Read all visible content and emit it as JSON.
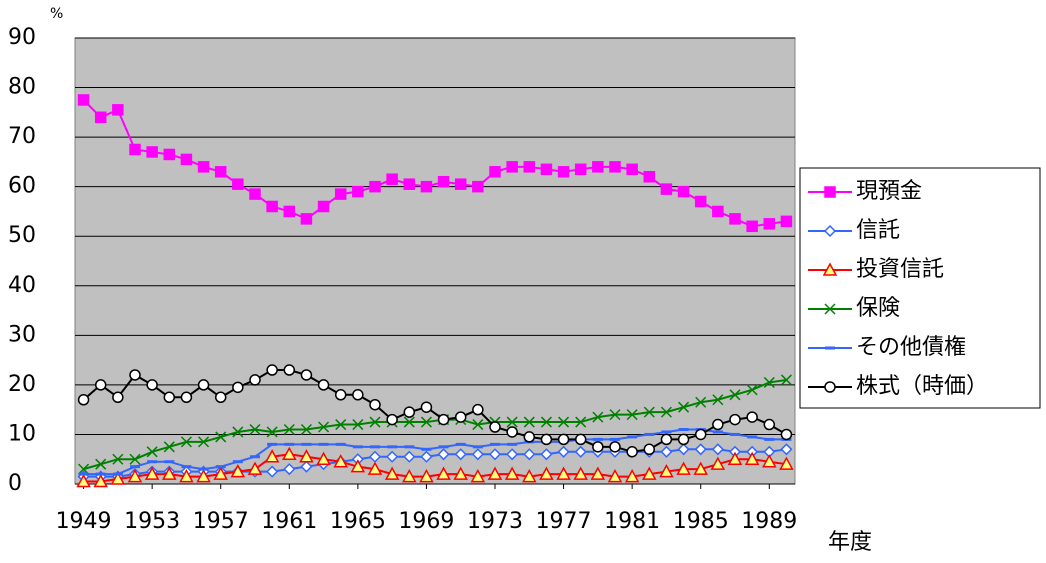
{
  "chart_data": {
    "type": "line",
    "y_unit": "%",
    "x_label": "年度",
    "x": [
      1949,
      1950,
      1951,
      1952,
      1953,
      1954,
      1955,
      1956,
      1957,
      1958,
      1959,
      1960,
      1961,
      1962,
      1963,
      1964,
      1965,
      1966,
      1967,
      1968,
      1969,
      1970,
      1971,
      1972,
      1973,
      1974,
      1975,
      1976,
      1977,
      1978,
      1979,
      1980,
      1981,
      1982,
      1983,
      1984,
      1985,
      1986,
      1987,
      1988,
      1989,
      1990
    ],
    "xlim": [
      1948.5,
      1990.5
    ],
    "xticks": [
      1949,
      1953,
      1957,
      1961,
      1965,
      1969,
      1973,
      1977,
      1981,
      1985,
      1989
    ],
    "ylim": [
      0,
      90
    ],
    "yticks": [
      0,
      10,
      20,
      30,
      40,
      50,
      60,
      70,
      80,
      90
    ],
    "grid": true,
    "background": "#c0c0c0",
    "series": [
      {
        "name": "現預金",
        "color": "#ff00ff",
        "marker": "square",
        "marker_fill": "#ff00ff",
        "values": [
          77.5,
          74,
          75.5,
          67.5,
          67,
          66.5,
          65.5,
          64,
          63,
          60.5,
          58.5,
          56,
          55,
          53.5,
          56,
          58.5,
          59,
          60,
          61.5,
          60.5,
          60,
          61,
          60.5,
          60,
          63,
          64,
          64,
          63.5,
          63,
          63.5,
          64,
          64,
          63.5,
          62,
          59.5,
          59,
          57,
          55,
          53.5,
          52,
          52.5,
          53
        ]
      },
      {
        "name": "信託",
        "color": "#3366ff",
        "marker": "diamond",
        "marker_fill": "#ffffff",
        "values": [
          1.5,
          1.5,
          1.5,
          2,
          2.5,
          2.5,
          2.5,
          2.5,
          2.5,
          2.5,
          2.5,
          2.5,
          3,
          3.5,
          4,
          4.5,
          5,
          5.5,
          5.5,
          5.5,
          5.5,
          6,
          6,
          6,
          6,
          6,
          6,
          6,
          6.5,
          6.5,
          6.5,
          6.5,
          6.5,
          6.5,
          6.5,
          7,
          7,
          7,
          6.5,
          6.5,
          6.5,
          7
        ]
      },
      {
        "name": "投資信託",
        "color": "#ff0000",
        "marker": "triangle",
        "marker_fill": "#ffff80",
        "values": [
          0.5,
          0.5,
          1,
          1.5,
          2,
          2,
          1.5,
          1.5,
          2,
          2.5,
          3,
          5.5,
          6,
          5.5,
          5,
          4.5,
          3.5,
          3,
          2,
          1.5,
          1.5,
          2,
          2,
          1.5,
          2,
          2,
          1.5,
          2,
          2,
          2,
          2,
          1.5,
          1.5,
          2,
          2.5,
          3,
          3,
          4,
          5,
          5,
          4.5,
          4
        ]
      },
      {
        "name": "保険",
        "color": "#008000",
        "marker": "x",
        "marker_fill": "none",
        "values": [
          3,
          4,
          5,
          5,
          6.5,
          7.5,
          8.5,
          8.5,
          9.5,
          10.5,
          11,
          10.5,
          11,
          11,
          11.5,
          12,
          12,
          12.5,
          12.5,
          12.5,
          12.5,
          13,
          13,
          12,
          12.5,
          12.5,
          12.5,
          12.5,
          12.5,
          12.5,
          13.5,
          14,
          14,
          14.5,
          14.5,
          15.5,
          16.5,
          17,
          18,
          19,
          20.5,
          21
        ]
      },
      {
        "name": "その他債権",
        "color": "#3366ff",
        "marker": "dash",
        "marker_fill": "none",
        "values": [
          2,
          2,
          2,
          3.5,
          4.5,
          4.5,
          3.5,
          3,
          3.5,
          4.5,
          5.5,
          8,
          8,
          8,
          8,
          8,
          7.5,
          7.5,
          7.5,
          7.5,
          7,
          7.5,
          8,
          7.5,
          8,
          8,
          8.5,
          8.5,
          8.5,
          9,
          9,
          9,
          9.5,
          10,
          10.5,
          11,
          11,
          10.5,
          10,
          9.5,
          9,
          9
        ]
      },
      {
        "name": "株式（時価）",
        "color": "#000000",
        "marker": "circle",
        "marker_fill": "#ffffff",
        "values": [
          17,
          20,
          17.5,
          22,
          20,
          17.5,
          17.5,
          20,
          17.5,
          19.5,
          21,
          23,
          23,
          22,
          20,
          18,
          18,
          16,
          13,
          14.5,
          15.5,
          13,
          13.5,
          15,
          11.5,
          10.5,
          9.5,
          9,
          9,
          9,
          7.5,
          7.5,
          6.5,
          7,
          9,
          9,
          10,
          12,
          13,
          13.5,
          12,
          10
        ]
      }
    ]
  }
}
